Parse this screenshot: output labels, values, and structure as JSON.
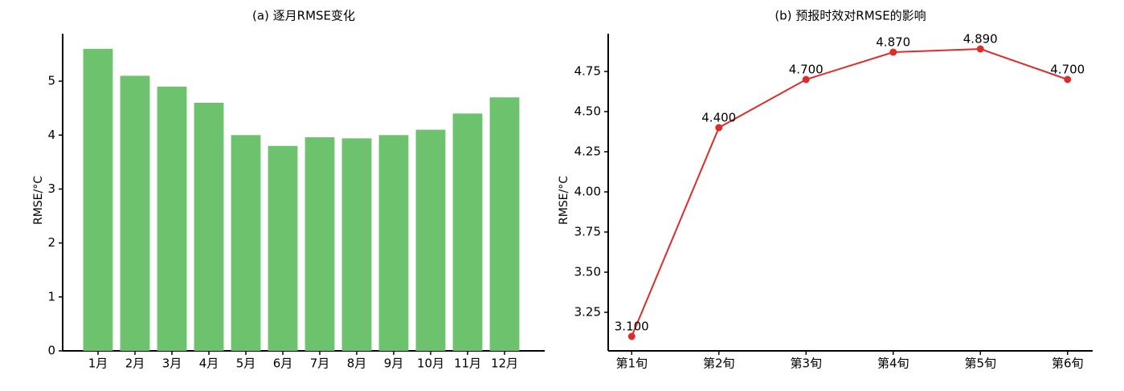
{
  "chart_data": [
    {
      "type": "bar",
      "title": "(a) 逐月RMSE变化",
      "y_label": "RMSE/°C",
      "categories": [
        "1月",
        "2月",
        "3月",
        "4月",
        "5月",
        "6月",
        "7月",
        "8月",
        "9月",
        "10月",
        "11月",
        "12月"
      ],
      "values": [
        5.6,
        5.1,
        4.9,
        4.6,
        4.0,
        3.8,
        3.96,
        3.94,
        4.0,
        4.1,
        4.4,
        4.7
      ],
      "color": "#6dc36d",
      "ylim": [
        0,
        5.88
      ],
      "yticks": [
        0,
        1,
        2,
        3,
        4,
        5
      ],
      "grid": false
    },
    {
      "type": "line",
      "title": "(b) 预报时效对RMSE的影响",
      "y_label": "RMSE/°C",
      "categories": [
        "第1旬",
        "第2旬",
        "第3旬",
        "第4旬",
        "第5旬",
        "第6旬"
      ],
      "values": [
        3.1,
        4.4,
        4.7,
        4.87,
        4.89,
        4.7
      ],
      "value_labels": [
        "3.100",
        "4.400",
        "4.700",
        "4.870",
        "4.890",
        "4.700"
      ],
      "color": "#dd2c2c",
      "ylim": [
        3.01,
        4.985
      ],
      "yticks": [
        3.25,
        {
          "value": 3.5,
          "label": "3.50"
        },
        3.75,
        {
          "value": 4,
          "label": "4.00"
        },
        4.25,
        {
          "value": 4.5,
          "label": "4.50"
        },
        4.75
      ],
      "grid": false
    }
  ]
}
